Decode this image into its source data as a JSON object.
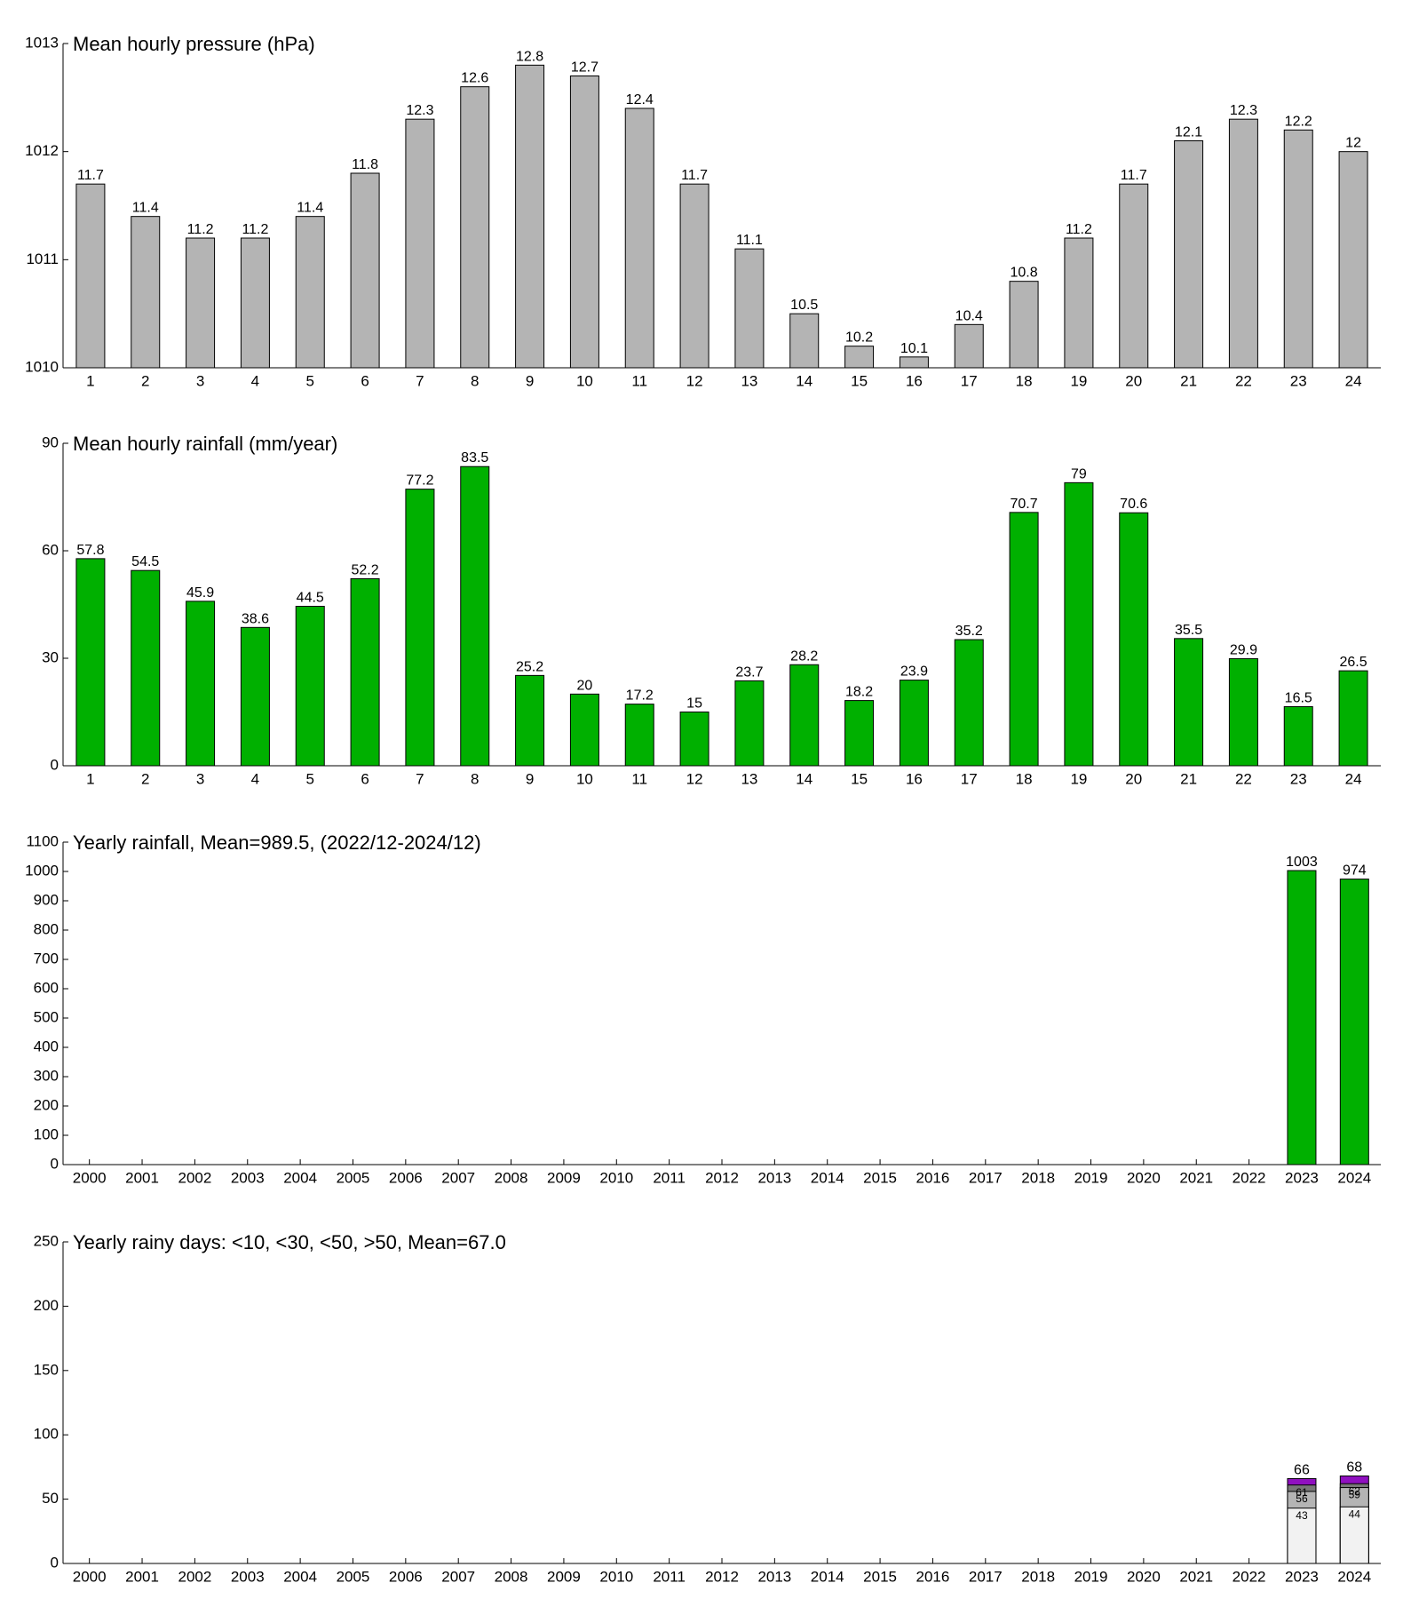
{
  "chart_data": [
    {
      "type": "bar",
      "title": "Mean hourly pressure (hPa)",
      "categories": [
        "1",
        "2",
        "3",
        "4",
        "5",
        "6",
        "7",
        "8",
        "9",
        "10",
        "11",
        "12",
        "13",
        "14",
        "15",
        "16",
        "17",
        "18",
        "19",
        "20",
        "21",
        "22",
        "23",
        "24"
      ],
      "values": [
        1011.7,
        1011.4,
        1011.2,
        1011.2,
        1011.4,
        1011.8,
        1012.3,
        1012.6,
        1012.8,
        1012.7,
        1012.4,
        1011.7,
        1011.1,
        1010.5,
        1010.2,
        1010.1,
        1010.4,
        1010.8,
        1011.2,
        1011.7,
        1012.1,
        1012.3,
        1012.2,
        1012
      ],
      "value_labels": [
        "11.7",
        "11.4",
        "11.2",
        "11.2",
        "11.4",
        "11.8",
        "12.3",
        "12.6",
        "12.8",
        "12.7",
        "12.4",
        "11.7",
        "11.1",
        "10.5",
        "10.2",
        "10.1",
        "10.4",
        "10.8",
        "11.2",
        "11.7",
        "12.1",
        "12.3",
        "12.2",
        "12"
      ],
      "color": "#b4b4b4",
      "ylim": [
        1010,
        1013
      ],
      "yticks": [
        1010,
        1011,
        1012,
        1013
      ]
    },
    {
      "type": "bar",
      "title": "Mean hourly rainfall (mm/year)",
      "categories": [
        "1",
        "2",
        "3",
        "4",
        "5",
        "6",
        "7",
        "8",
        "9",
        "10",
        "11",
        "12",
        "13",
        "14",
        "15",
        "16",
        "17",
        "18",
        "19",
        "20",
        "21",
        "22",
        "23",
        "24"
      ],
      "values": [
        57.8,
        54.5,
        45.9,
        38.6,
        44.5,
        52.2,
        77.2,
        83.5,
        25.2,
        20,
        17.2,
        15,
        23.7,
        28.2,
        18.2,
        23.9,
        35.2,
        70.7,
        79,
        70.6,
        35.5,
        29.9,
        16.5,
        26.5
      ],
      "color": "#00b000",
      "ylim": [
        0,
        90
      ],
      "yticks": [
        0,
        30,
        60,
        90
      ]
    },
    {
      "type": "bar",
      "title": "Yearly rainfall, Mean=989.5, (2022/12-2024/12)",
      "categories": [
        "2000",
        "2001",
        "2002",
        "2003",
        "2004",
        "2005",
        "2006",
        "2007",
        "2008",
        "2009",
        "2010",
        "2011",
        "2012",
        "2013",
        "2014",
        "2015",
        "2016",
        "2017",
        "2018",
        "2019",
        "2020",
        "2021",
        "2022",
        "2023",
        "2024"
      ],
      "values": [
        null,
        null,
        null,
        null,
        null,
        null,
        null,
        null,
        null,
        null,
        null,
        null,
        null,
        null,
        null,
        null,
        null,
        null,
        null,
        null,
        null,
        null,
        null,
        1003,
        974
      ],
      "color": "#00b000",
      "ylim": [
        0,
        1100
      ],
      "yticks": [
        0,
        100,
        200,
        300,
        400,
        500,
        600,
        700,
        800,
        900,
        1000,
        1100
      ]
    },
    {
      "type": "overlap_bar",
      "title": "Yearly rainy days: <10, <30, <50, >50, Mean=67.0",
      "categories": [
        "2000",
        "2001",
        "2002",
        "2003",
        "2004",
        "2005",
        "2006",
        "2007",
        "2008",
        "2009",
        "2010",
        "2011",
        "2012",
        "2013",
        "2014",
        "2015",
        "2016",
        "2017",
        "2018",
        "2019",
        "2020",
        "2021",
        "2022",
        "2023",
        "2024"
      ],
      "series": [
        {
          "color": "#f2f2f2",
          "values": [
            null,
            null,
            null,
            null,
            null,
            null,
            null,
            null,
            null,
            null,
            null,
            null,
            null,
            null,
            null,
            null,
            null,
            null,
            null,
            null,
            null,
            null,
            null,
            43,
            44
          ]
        },
        {
          "color": "#b4b4b4",
          "values": [
            null,
            null,
            null,
            null,
            null,
            null,
            null,
            null,
            null,
            null,
            null,
            null,
            null,
            null,
            null,
            null,
            null,
            null,
            null,
            null,
            null,
            null,
            null,
            56,
            59
          ]
        },
        {
          "color": "#787878",
          "values": [
            null,
            null,
            null,
            null,
            null,
            null,
            null,
            null,
            null,
            null,
            null,
            null,
            null,
            null,
            null,
            null,
            null,
            null,
            null,
            null,
            null,
            null,
            null,
            61,
            62
          ]
        },
        {
          "color": "#9010c0",
          "values": [
            null,
            null,
            null,
            null,
            null,
            null,
            null,
            null,
            null,
            null,
            null,
            null,
            null,
            null,
            null,
            null,
            null,
            null,
            null,
            null,
            null,
            null,
            null,
            66,
            68
          ]
        }
      ],
      "ylim": [
        0,
        250
      ],
      "yticks": [
        0,
        50,
        100,
        150,
        200,
        250
      ]
    }
  ]
}
